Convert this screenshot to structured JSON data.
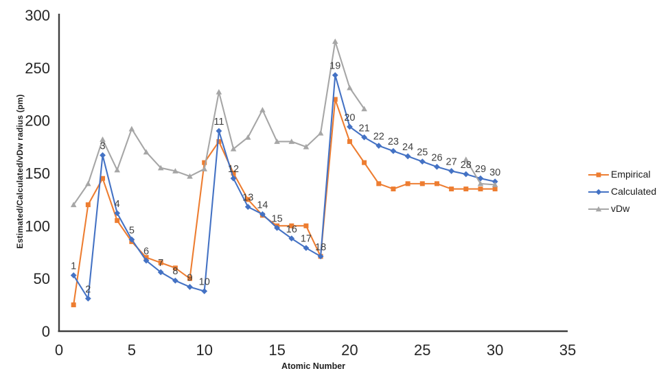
{
  "chart_data": {
    "type": "line",
    "title": "",
    "xlabel": "Atomic Number",
    "ylabel": "Estimated/Calculated/vDw radius (pm)",
    "xlim": [
      0,
      35
    ],
    "ylim": [
      0,
      300
    ],
    "xticks": [
      0,
      5,
      10,
      15,
      20,
      25,
      30,
      35
    ],
    "yticks": [
      0,
      50,
      100,
      150,
      200,
      250,
      300
    ],
    "grid": false,
    "legend_position": "right-middle",
    "x": [
      1,
      2,
      3,
      4,
      5,
      6,
      7,
      8,
      9,
      10,
      11,
      12,
      13,
      14,
      15,
      16,
      17,
      18,
      19,
      20,
      21,
      22,
      23,
      24,
      25,
      26,
      27,
      28,
      29,
      30
    ],
    "series": [
      {
        "name": "Empirical",
        "color": "#ED7D31",
        "marker": "square",
        "values": [
          25,
          120,
          145,
          105,
          85,
          70,
          65,
          60,
          50,
          160,
          180,
          150,
          125,
          110,
          100,
          100,
          100,
          71,
          220,
          180,
          160,
          140,
          135,
          140,
          140,
          140,
          135,
          135,
          135,
          135
        ]
      },
      {
        "name": "Calculated",
        "color": "#4472C4",
        "marker": "diamond",
        "values": [
          53,
          31,
          167,
          112,
          87,
          67,
          56,
          48,
          42,
          38,
          190,
          145,
          118,
          111,
          98,
          88,
          79,
          71,
          243,
          194,
          184,
          176,
          171,
          166,
          161,
          156,
          152,
          149,
          145,
          142
        ]
      },
      {
        "name": "vDw",
        "color": "#A6A6A6",
        "marker": "triangle",
        "values": [
          120,
          140,
          182,
          153,
          192,
          170,
          155,
          152,
          147,
          154,
          227,
          173,
          184,
          210,
          180,
          180,
          175,
          188,
          275,
          231,
          211,
          null,
          null,
          null,
          null,
          null,
          null,
          163,
          140,
          139
        ]
      }
    ],
    "point_labels": {
      "attached_to": "Calculated",
      "values": [
        1,
        2,
        3,
        4,
        5,
        6,
        7,
        8,
        9,
        10,
        11,
        12,
        13,
        14,
        15,
        16,
        17,
        18,
        19,
        20,
        21,
        22,
        23,
        24,
        25,
        26,
        27,
        28,
        29,
        30
      ]
    },
    "colors": {
      "axis": "#3f3f3f",
      "tick_text": "#262626",
      "point_label_text": "#404040",
      "legend_text": "#1a1a1a"
    }
  }
}
